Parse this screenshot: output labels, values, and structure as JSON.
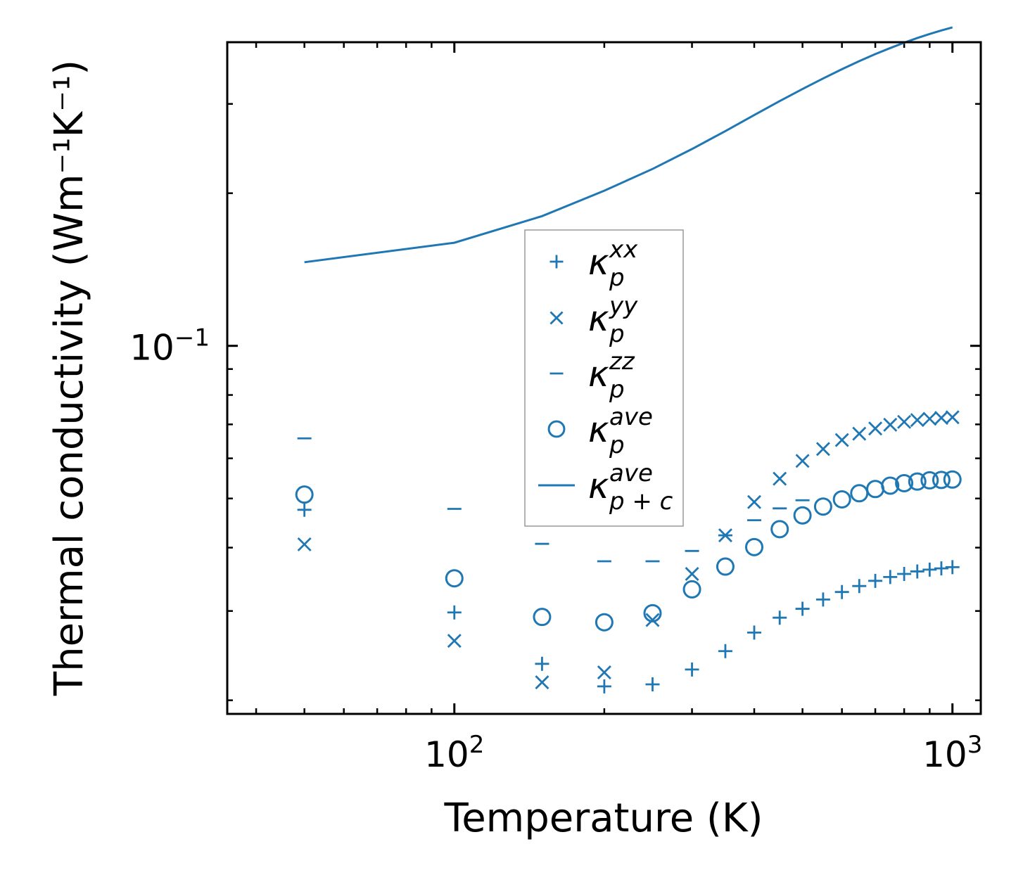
{
  "chart_data": {
    "type": "scatter",
    "title": "",
    "xlabel": "Temperature (K)",
    "ylabel": "Thermal conductivity (Wm⁻¹K⁻¹)",
    "xscale": "log",
    "yscale": "log",
    "xlim": [
      35,
      1140
    ],
    "ylim": [
      0.0188,
      0.397
    ],
    "x_ticks": [
      {
        "value": 100,
        "base": "10",
        "exp": "2"
      },
      {
        "value": 1000,
        "base": "10",
        "exp": "3"
      }
    ],
    "y_ticks": [
      {
        "value": 0.1,
        "base": "10",
        "exp": "−1"
      }
    ],
    "legend_position": "center",
    "color": "#1f77b4",
    "series": [
      {
        "name": "kappa_p_xx",
        "legend": {
          "sym": "κ",
          "sub": "p",
          "sup": "xx"
        },
        "marker": "plus",
        "x": [
          50,
          100,
          150,
          200,
          250,
          300,
          350,
          400,
          450,
          500,
          550,
          600,
          650,
          700,
          750,
          800,
          850,
          900,
          950,
          1000
        ],
        "y": [
          0.0475,
          0.0298,
          0.0236,
          0.0213,
          0.0215,
          0.023,
          0.025,
          0.0272,
          0.0291,
          0.0303,
          0.0316,
          0.0327,
          0.0336,
          0.0344,
          0.035,
          0.0355,
          0.0359,
          0.0362,
          0.0364,
          0.0366
        ]
      },
      {
        "name": "kappa_p_yy",
        "legend": {
          "sym": "κ",
          "sub": "p",
          "sup": "yy"
        },
        "marker": "x",
        "x": [
          50,
          100,
          150,
          200,
          250,
          300,
          350,
          400,
          450,
          500,
          550,
          600,
          650,
          700,
          750,
          800,
          850,
          900,
          950,
          1000
        ],
        "y": [
          0.0406,
          0.0262,
          0.0217,
          0.0227,
          0.0288,
          0.0355,
          0.0423,
          0.0492,
          0.0547,
          0.0593,
          0.0626,
          0.0652,
          0.0671,
          0.0687,
          0.0699,
          0.0708,
          0.0714,
          0.0718,
          0.0721,
          0.0723
        ]
      },
      {
        "name": "kappa_p_zz",
        "legend": {
          "sym": "κ",
          "sub": "p",
          "sup": "zz"
        },
        "marker": "hline",
        "x": [
          50,
          100,
          150,
          200,
          250,
          300,
          350,
          400,
          450,
          500
        ],
        "y": [
          0.0657,
          0.0477,
          0.0407,
          0.0376,
          0.0376,
          0.0394,
          0.0423,
          0.0453,
          0.0478,
          0.0496
        ]
      },
      {
        "name": "kappa_p_ave",
        "legend": {
          "sym": "κ",
          "sub": "p",
          "sup": "ave"
        },
        "marker": "circle",
        "x": [
          50,
          100,
          150,
          200,
          250,
          300,
          350,
          400,
          450,
          500,
          550,
          600,
          650,
          700,
          750,
          800,
          850,
          900,
          950,
          1000
        ],
        "y": [
          0.0509,
          0.0348,
          0.0292,
          0.0285,
          0.0297,
          0.0331,
          0.0367,
          0.0401,
          0.0435,
          0.0463,
          0.0482,
          0.0498,
          0.0512,
          0.0522,
          0.053,
          0.0536,
          0.054,
          0.0543,
          0.0544,
          0.0545
        ]
      },
      {
        "name": "kappa_p_plus_c_ave",
        "legend": {
          "sym": "κ",
          "sub": "p + c",
          "sup": "ave"
        },
        "marker": "line",
        "x": [
          50,
          100,
          150,
          200,
          250,
          300,
          350,
          400,
          450,
          500,
          550,
          600,
          650,
          700,
          750,
          800,
          850,
          900,
          950,
          1000
        ],
        "y": [
          0.1462,
          0.1597,
          0.1802,
          0.2023,
          0.2233,
          0.2444,
          0.2651,
          0.2852,
          0.3039,
          0.3209,
          0.3367,
          0.3512,
          0.3643,
          0.3761,
          0.3866,
          0.3961,
          0.4046,
          0.4121,
          0.4188,
          0.4247
        ]
      }
    ]
  }
}
